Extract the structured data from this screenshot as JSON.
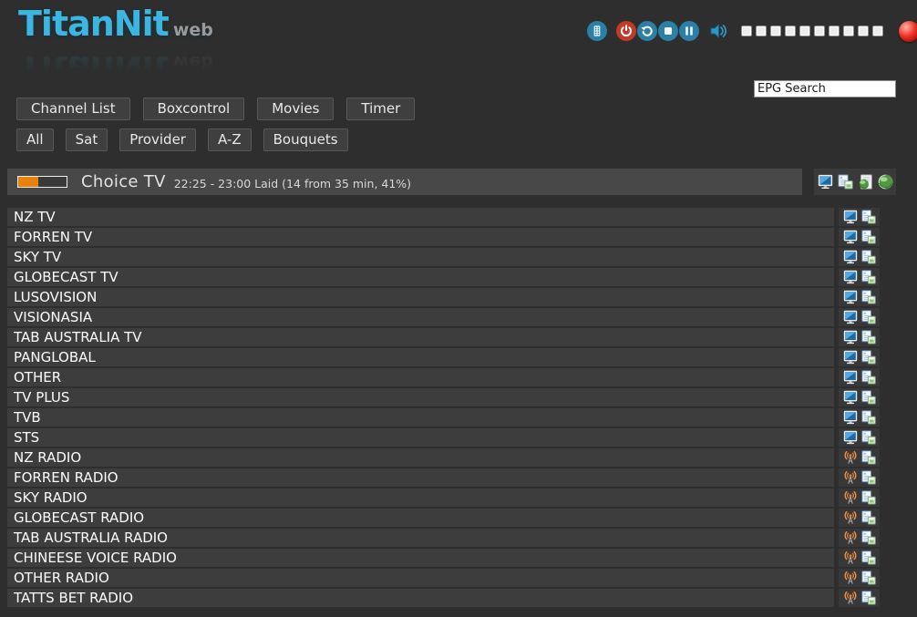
{
  "logo": {
    "title": "TitanNit",
    "suffix": "web"
  },
  "toolbar": {
    "icons": [
      "remote-icon",
      "power-icon",
      "refresh-icon",
      "stop-icon",
      "pause-icon",
      "speaker-icon"
    ],
    "volume_segments": 10,
    "status_icons": [
      "record-status-ball",
      "signal-status-icon"
    ]
  },
  "search": {
    "value": "EPG Search"
  },
  "nav": {
    "primary": [
      "Channel List",
      "Boxcontrol",
      "Movies",
      "Timer"
    ],
    "filters": [
      "All",
      "Sat",
      "Provider",
      "A-Z",
      "Bouquets"
    ]
  },
  "now_playing": {
    "channel": "Choice TV",
    "details": "22:25 - 23:00 Laid (14 from 35 min, 41%)",
    "progress_percent": 41,
    "progress_color": "#e8820a",
    "action_icons": [
      "tv-screen-icon",
      "stream-pages-icon",
      "epg-document-globe-icon",
      "globe-icon"
    ]
  },
  "channels": [
    {
      "name": "NZ TV",
      "type": "tv"
    },
    {
      "name": "FORREN TV",
      "type": "tv"
    },
    {
      "name": "SKY TV",
      "type": "tv"
    },
    {
      "name": "GLOBECAST TV",
      "type": "tv"
    },
    {
      "name": "LUSOVISION",
      "type": "tv"
    },
    {
      "name": "VISIONASIA",
      "type": "tv"
    },
    {
      "name": "TAB AUSTRALIA TV",
      "type": "tv"
    },
    {
      "name": "PANGLOBAL",
      "type": "tv"
    },
    {
      "name": "OTHER",
      "type": "tv"
    },
    {
      "name": "TV PLUS",
      "type": "tv"
    },
    {
      "name": "TVB",
      "type": "tv"
    },
    {
      "name": "STS",
      "type": "tv"
    },
    {
      "name": "NZ RADIO",
      "type": "radio"
    },
    {
      "name": "FORREN RADIO",
      "type": "radio"
    },
    {
      "name": "SKY RADIO",
      "type": "radio"
    },
    {
      "name": "GLOBECAST RADIO",
      "type": "radio"
    },
    {
      "name": "TAB AUSTRALIA RADIO",
      "type": "radio"
    },
    {
      "name": "CHINEESE VOICE RADIO",
      "type": "radio"
    },
    {
      "name": "OTHER RADIO",
      "type": "radio"
    },
    {
      "name": "TATTS BET RADIO",
      "type": "radio"
    }
  ],
  "colors": {
    "background": "#2e2e2e",
    "row": "#3d3d3d",
    "bar": "#484848",
    "logo_blue": "#3cb6e0",
    "accent_blue": "#2c80a5",
    "power_red": "#c23b2a",
    "progress_orange": "#e8820a",
    "radio_orange": "#e0782a",
    "status_red": "#e51c23",
    "status_green": "#3cb14c"
  }
}
